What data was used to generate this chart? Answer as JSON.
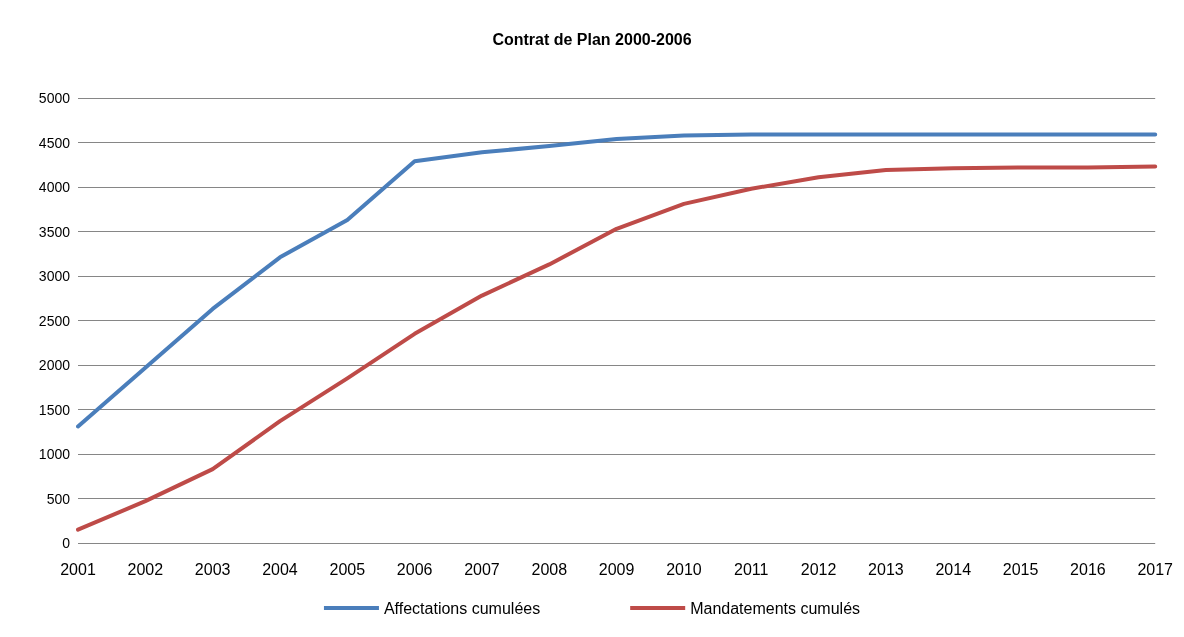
{
  "chart_data": {
    "type": "line",
    "title": "Contrat de Plan 2000-2006",
    "categories": [
      "2001",
      "2002",
      "2003",
      "2004",
      "2005",
      "2006",
      "2007",
      "2008",
      "2009",
      "2010",
      "2011",
      "2012",
      "2013",
      "2014",
      "2015",
      "2016",
      "2017"
    ],
    "series": [
      {
        "name": "Affectations cumulées",
        "color": "#4a7ebb",
        "values": [
          1310,
          1970,
          2630,
          3210,
          3630,
          4290,
          4390,
          4460,
          4540,
          4580,
          4590,
          4590,
          4590,
          4590,
          4590,
          4590,
          4590
        ]
      },
      {
        "name": "Mandatements cumulés",
        "color": "#be4b48",
        "values": [
          150,
          470,
          830,
          1370,
          1850,
          2350,
          2780,
          3130,
          3530,
          3810,
          3980,
          4110,
          4190,
          4210,
          4220,
          4220,
          4230
        ]
      }
    ],
    "ylim": [
      0,
      5000
    ],
    "yticks": [
      0,
      500,
      1000,
      1500,
      2000,
      2500,
      3000,
      3500,
      4000,
      4500,
      5000
    ],
    "grid": "y",
    "legend": "bottom",
    "marker": "none",
    "line_style": "solid"
  }
}
